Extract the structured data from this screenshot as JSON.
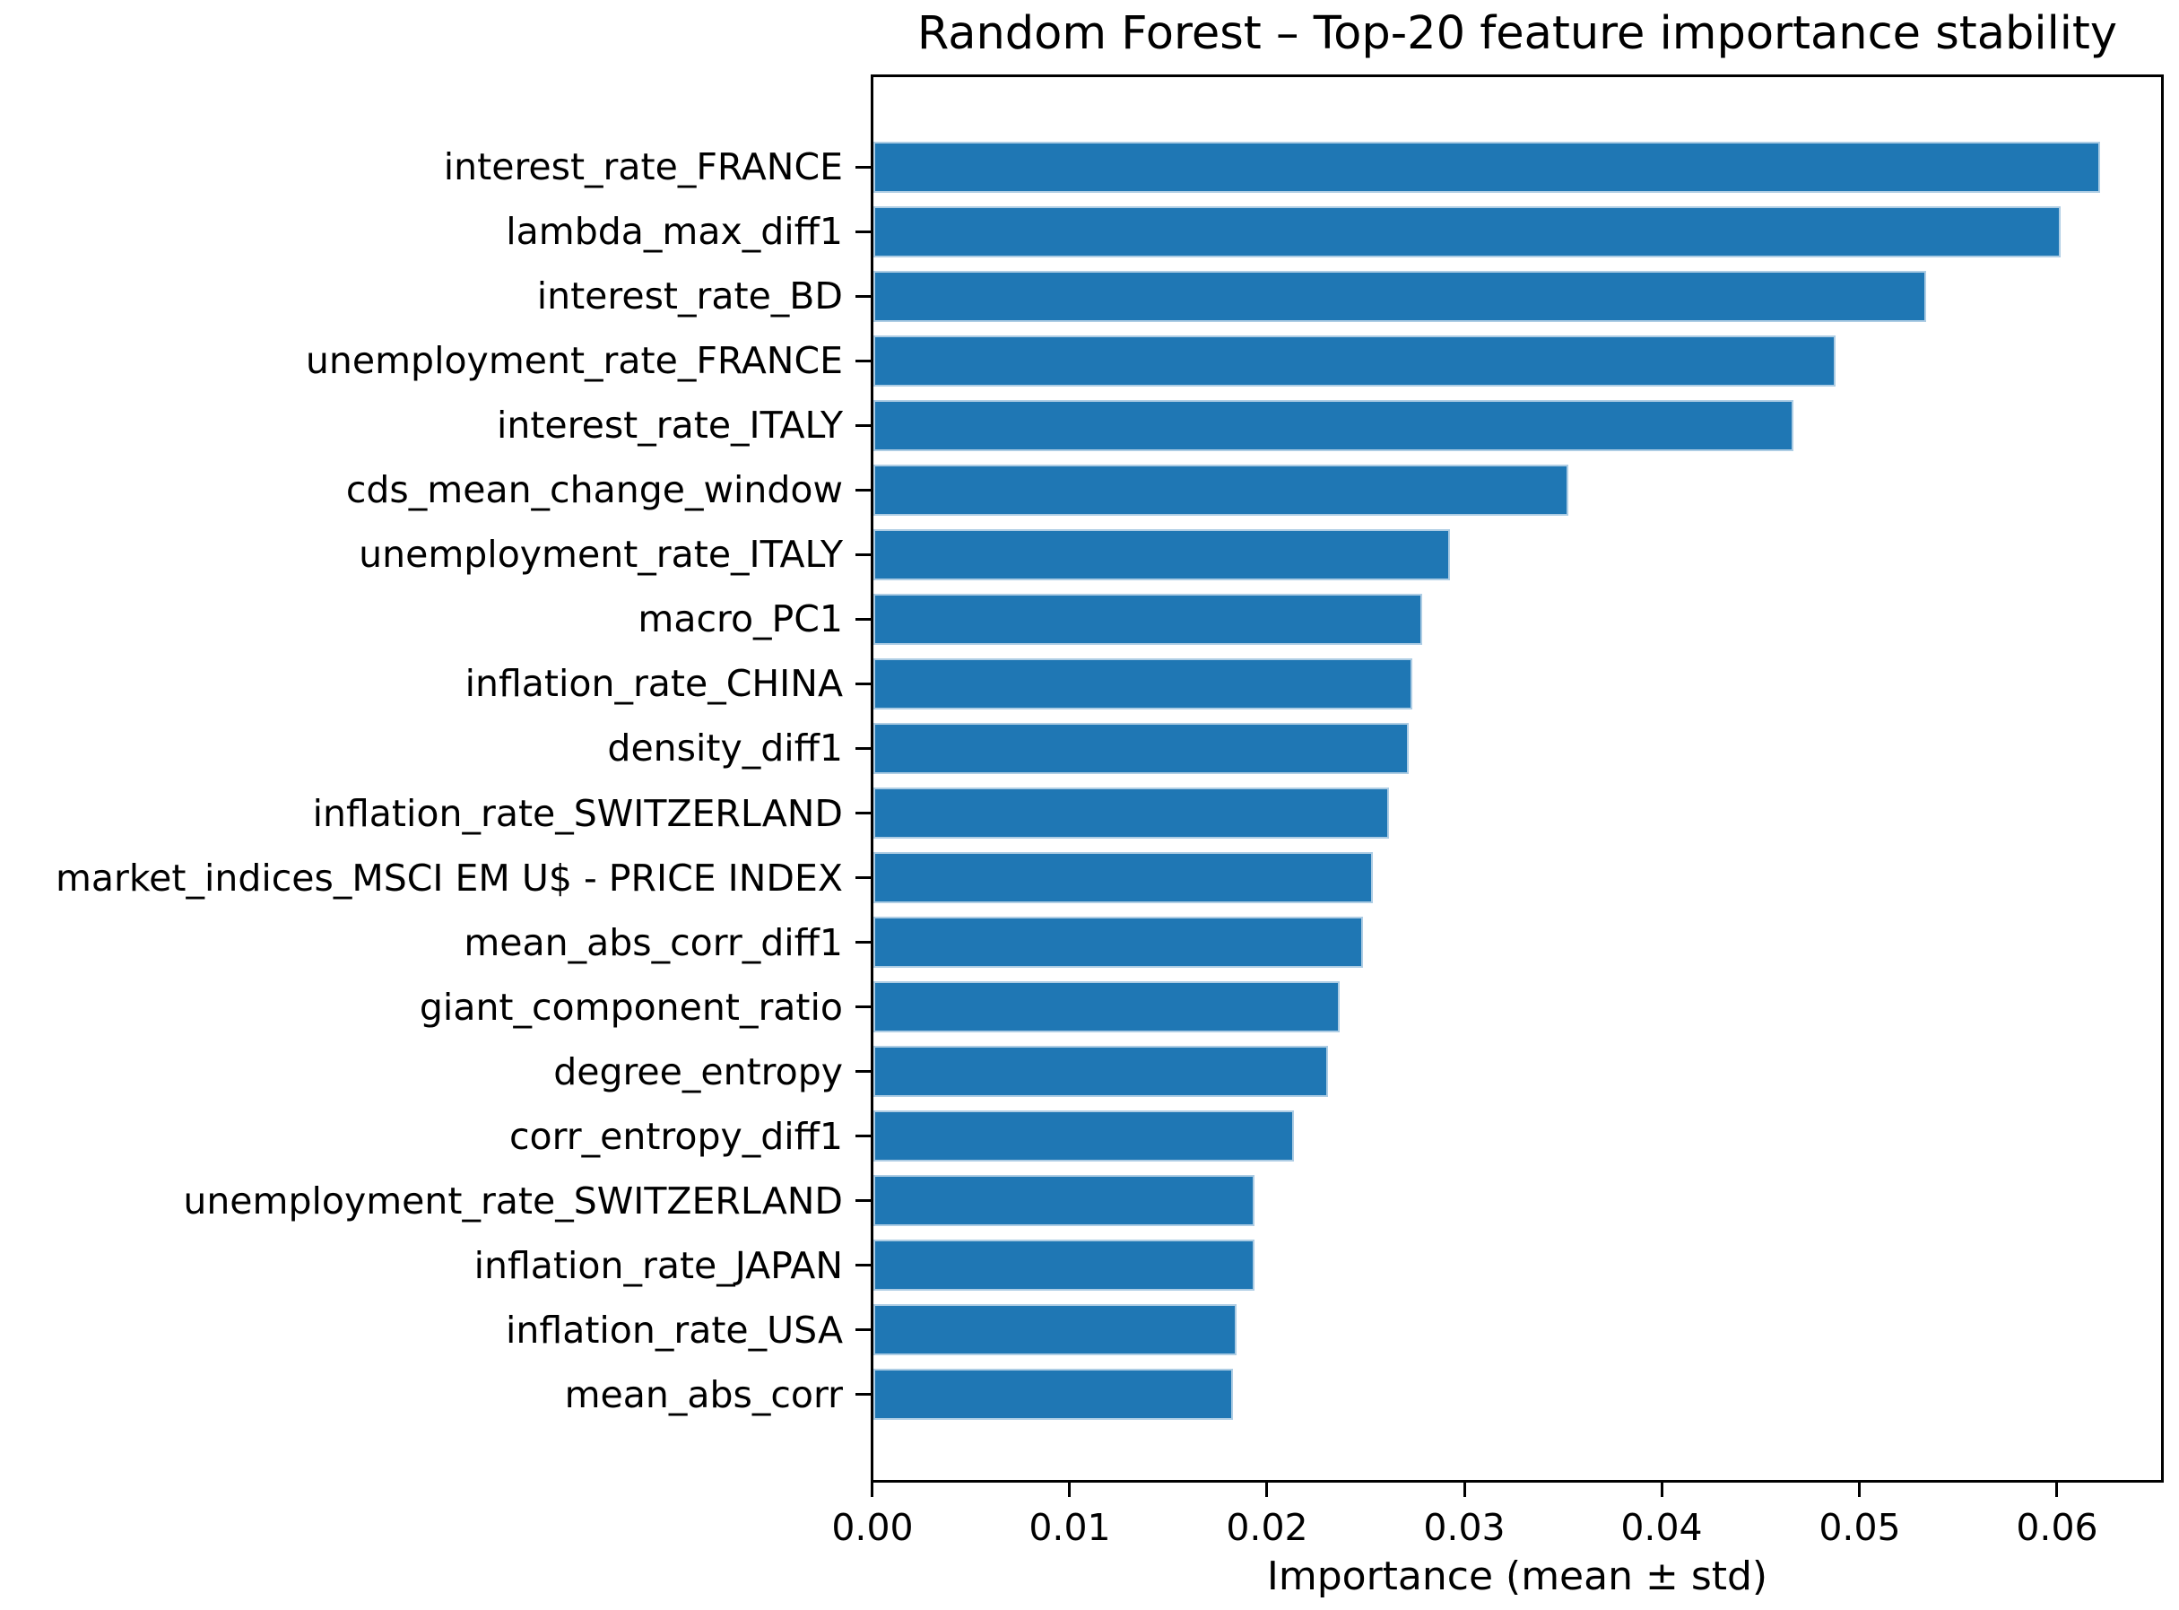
{
  "chart_data": {
    "type": "bar",
    "orientation": "horizontal",
    "title": "Random Forest – Top-20 feature importance stability",
    "xlabel": "Importance (mean ± std)",
    "ylabel": "",
    "categories": [
      "interest_rate_FRANCE",
      "lambda_max_diff1",
      "interest_rate_BD",
      "unemployment_rate_FRANCE",
      "interest_rate_ITALY",
      "cds_mean_change_window",
      "unemployment_rate_ITALY",
      "macro_PC1",
      "inflation_rate_CHINA",
      "density_diff1",
      "inflation_rate_SWITZERLAND",
      "market_indices_MSCI EM U$ - PRICE INDEX",
      "mean_abs_corr_diff1",
      "giant_component_ratio",
      "degree_entropy",
      "corr_entropy_diff1",
      "unemployment_rate_SWITZERLAND",
      "inflation_rate_JAPAN",
      "inflation_rate_USA",
      "mean_abs_corr"
    ],
    "values": [
      0.0621,
      0.0601,
      0.0533,
      0.0487,
      0.0466,
      0.0352,
      0.0292,
      0.0278,
      0.0273,
      0.0271,
      0.0261,
      0.0253,
      0.0248,
      0.0236,
      0.023,
      0.0213,
      0.0193,
      0.0193,
      0.0184,
      0.0182
    ],
    "xlim": [
      0,
      0.0652
    ],
    "xticks": [
      "0.00",
      "0.01",
      "0.02",
      "0.03",
      "0.04",
      "0.05",
      "0.06"
    ],
    "grid": false,
    "legend": null,
    "bar_color": "#1f77b4",
    "bar_edge_color": "#aecde4",
    "text_color": "#000000",
    "background": "#ffffff"
  }
}
